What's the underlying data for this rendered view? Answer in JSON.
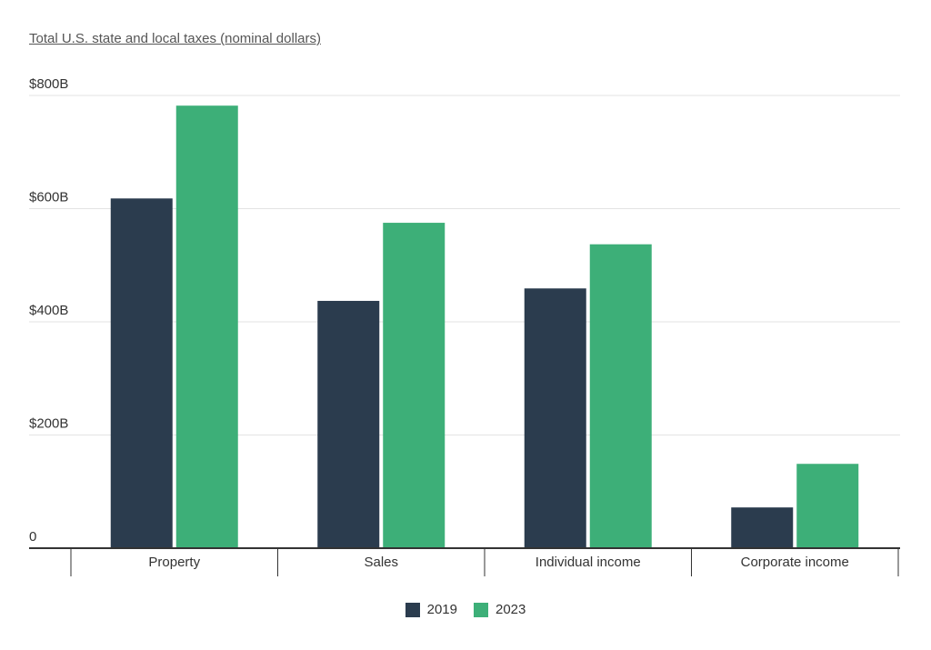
{
  "chart_data": {
    "type": "bar",
    "title": "Total U.S. state and local taxes (nominal dollars)",
    "categories": [
      "Property",
      "Sales",
      "Individual income",
      "Corporate income"
    ],
    "series": [
      {
        "name": "2019",
        "color": "#2b3c4e",
        "values": [
          618,
          437,
          459,
          72
        ]
      },
      {
        "name": "2023",
        "color": "#3daf78",
        "values": [
          782,
          575,
          537,
          149
        ]
      }
    ],
    "ylim": [
      0,
      800
    ],
    "yticks": [
      0,
      200,
      400,
      600,
      800
    ],
    "ytick_labels": [
      "0",
      "$200B",
      "$400B",
      "$600B",
      "$800B"
    ],
    "units": "billions of dollars",
    "grid": true,
    "legend_position": "bottom"
  }
}
